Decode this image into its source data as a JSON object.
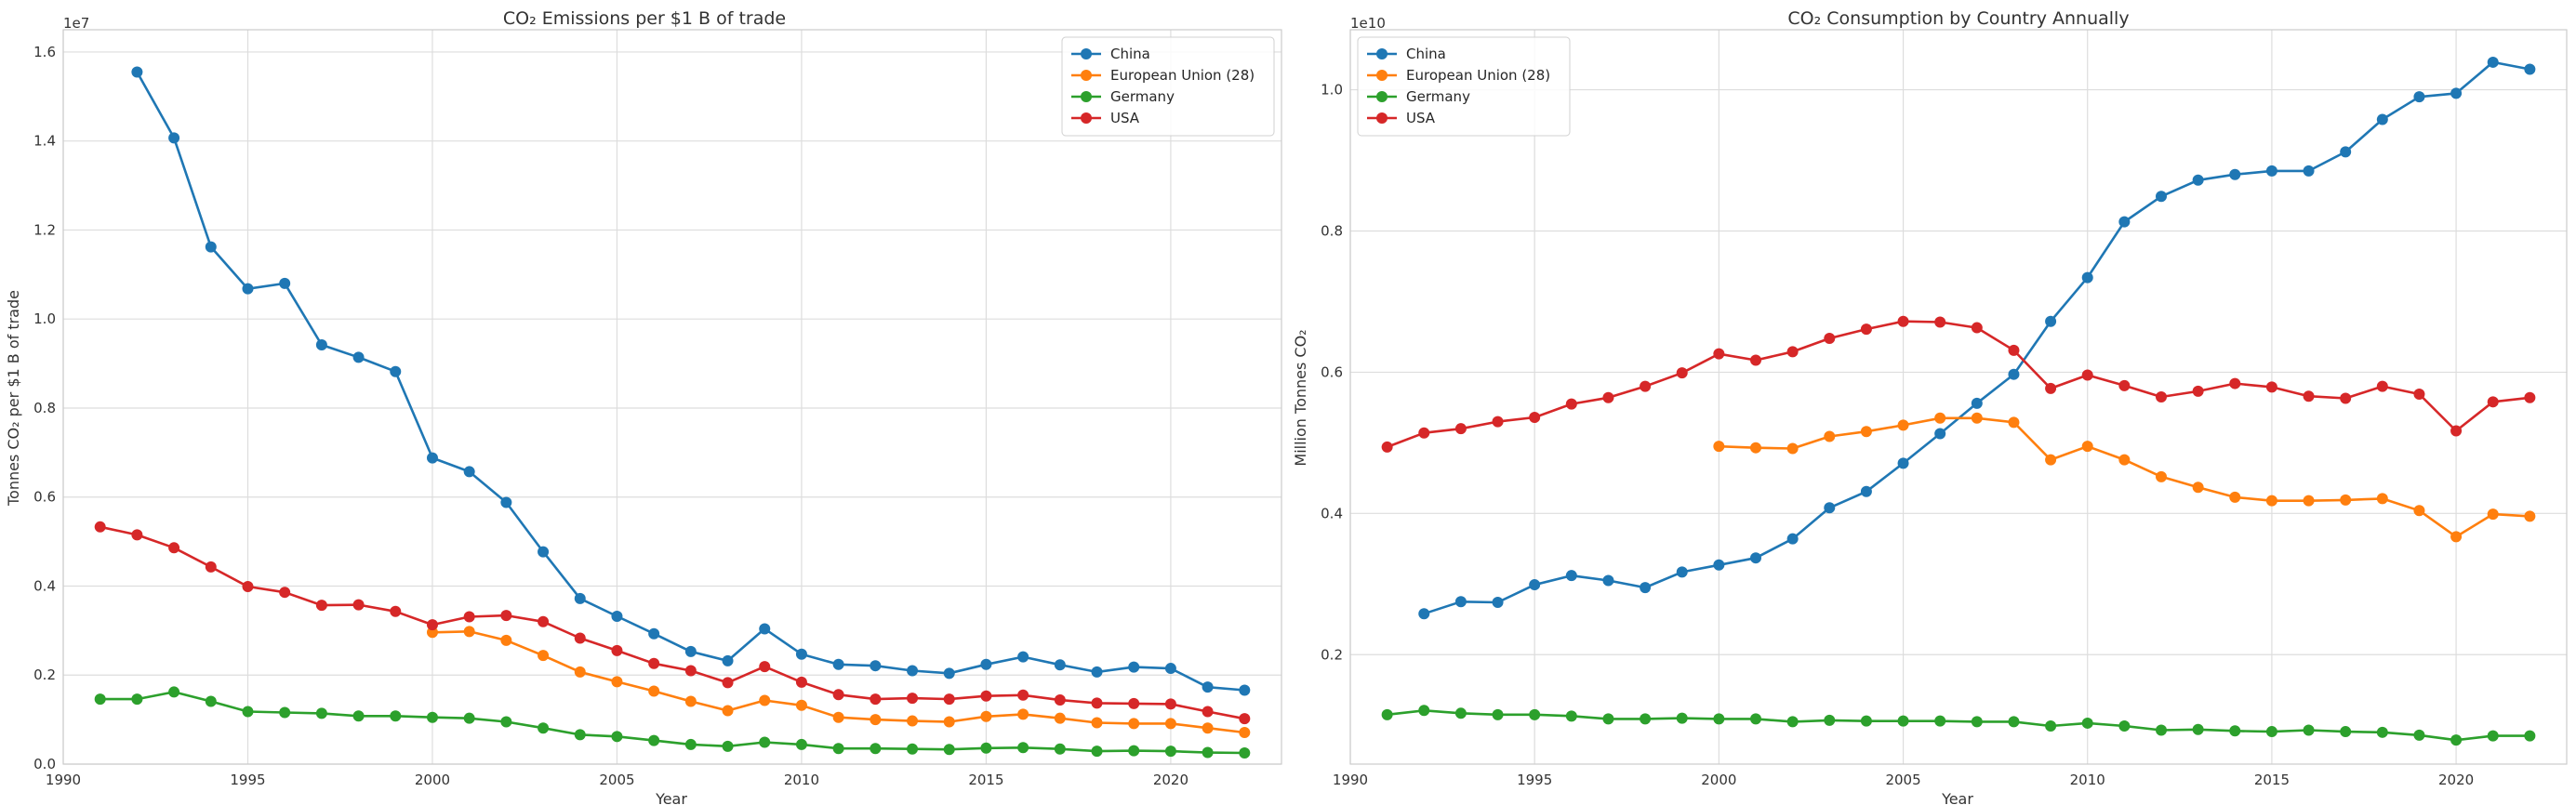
{
  "chart_data": [
    {
      "type": "line",
      "title": "CO₂ Emissions per $1 B of trade",
      "xlabel": "Year",
      "ylabel": "Tonnes CO₂ per $1 B of trade",
      "y_offset_label": "1e7",
      "xlim": [
        1990,
        2023
      ],
      "ylim": [
        0,
        16.5
      ],
      "x_ticks": [
        1990,
        1995,
        2000,
        2005,
        2010,
        2015,
        2020
      ],
      "y_ticks": [
        0,
        2,
        4,
        6,
        8,
        10,
        12,
        14,
        16
      ],
      "y_tick_labels": [
        "0.0",
        "0.2",
        "0.4",
        "0.6",
        "0.8",
        "1.0",
        "1.2",
        "1.4",
        "1.6"
      ],
      "grid": true,
      "legend_position": "top-right",
      "series": [
        {
          "name": "China",
          "color": "#1f77b4",
          "x": [
            1992,
            1993,
            1994,
            1995,
            1996,
            1997,
            1998,
            1999,
            2000,
            2001,
            2002,
            2003,
            2004,
            2005,
            2006,
            2007,
            2008,
            2009,
            2010,
            2011,
            2012,
            2013,
            2014,
            2015,
            2016,
            2017,
            2018,
            2019,
            2020,
            2021,
            2022
          ],
          "y": [
            15.55,
            14.07,
            11.62,
            10.68,
            10.8,
            9.42,
            9.14,
            8.82,
            6.88,
            6.57,
            5.88,
            4.77,
            3.72,
            3.32,
            2.93,
            2.53,
            2.32,
            3.04,
            2.47,
            2.24,
            2.21,
            2.1,
            2.04,
            2.24,
            2.41,
            2.23,
            2.07,
            2.18,
            2.15,
            1.73,
            1.66
          ]
        },
        {
          "name": "European Union (28)",
          "color": "#ff7f0e",
          "x": [
            2000,
            2001,
            2002,
            2003,
            2004,
            2005,
            2006,
            2007,
            2008,
            2009,
            2010,
            2011,
            2012,
            2013,
            2014,
            2015,
            2016,
            2017,
            2018,
            2019,
            2020,
            2021,
            2022
          ],
          "y": [
            2.96,
            2.98,
            2.78,
            2.44,
            2.07,
            1.85,
            1.64,
            1.41,
            1.2,
            1.43,
            1.32,
            1.05,
            1.0,
            0.97,
            0.95,
            1.07,
            1.12,
            1.03,
            0.93,
            0.91,
            0.91,
            0.81,
            0.71
          ]
        },
        {
          "name": "Germany",
          "color": "#2ca02c",
          "x": [
            1991,
            1992,
            1993,
            1994,
            1995,
            1996,
            1997,
            1998,
            1999,
            2000,
            2001,
            2002,
            2003,
            2004,
            2005,
            2006,
            2007,
            2008,
            2009,
            2010,
            2011,
            2012,
            2013,
            2014,
            2015,
            2016,
            2017,
            2018,
            2019,
            2020,
            2021,
            2022
          ],
          "y": [
            1.46,
            1.46,
            1.62,
            1.41,
            1.18,
            1.16,
            1.14,
            1.08,
            1.08,
            1.05,
            1.03,
            0.95,
            0.81,
            0.66,
            0.62,
            0.53,
            0.44,
            0.4,
            0.49,
            0.44,
            0.35,
            0.35,
            0.34,
            0.33,
            0.36,
            0.37,
            0.34,
            0.29,
            0.3,
            0.29,
            0.26,
            0.25
          ]
        },
        {
          "name": "USA",
          "color": "#d62728",
          "x": [
            1991,
            1992,
            1993,
            1994,
            1995,
            1996,
            1997,
            1998,
            1999,
            2000,
            2001,
            2002,
            2003,
            2004,
            2005,
            2006,
            2007,
            2008,
            2009,
            2010,
            2011,
            2012,
            2013,
            2014,
            2015,
            2016,
            2017,
            2018,
            2019,
            2020,
            2021,
            2022
          ],
          "y": [
            5.33,
            5.15,
            4.86,
            4.43,
            3.99,
            3.86,
            3.57,
            3.58,
            3.43,
            3.13,
            3.31,
            3.34,
            3.2,
            2.83,
            2.55,
            2.26,
            2.1,
            1.83,
            2.19,
            1.84,
            1.56,
            1.46,
            1.48,
            1.46,
            1.53,
            1.55,
            1.44,
            1.37,
            1.36,
            1.35,
            1.18,
            1.02
          ]
        }
      ]
    },
    {
      "type": "line",
      "title": "CO₂ Consumption by Country Annually",
      "xlabel": "Year",
      "ylabel": "Million Tonnes CO₂",
      "y_offset_label": "1e10",
      "xlim": [
        1990,
        2023
      ],
      "ylim": [
        0.45,
        10.85
      ],
      "x_ticks": [
        1990,
        1995,
        2000,
        2005,
        2010,
        2015,
        2020
      ],
      "y_ticks": [
        2,
        4,
        6,
        8,
        10
      ],
      "y_tick_labels": [
        "0.2",
        "0.4",
        "0.6",
        "0.8",
        "1.0"
      ],
      "grid": true,
      "legend_position": "top-left",
      "series": [
        {
          "name": "China",
          "color": "#1f77b4",
          "x": [
            1992,
            1993,
            1994,
            1995,
            1996,
            1997,
            1998,
            1999,
            2000,
            2001,
            2002,
            2003,
            2004,
            2005,
            2006,
            2007,
            2008,
            2009,
            2010,
            2011,
            2012,
            2013,
            2014,
            2015,
            2016,
            2017,
            2018,
            2019,
            2020,
            2021,
            2022
          ],
          "y": [
            2.58,
            2.75,
            2.74,
            2.99,
            3.12,
            3.05,
            2.95,
            3.17,
            3.27,
            3.37,
            3.64,
            4.08,
            4.31,
            4.71,
            5.13,
            5.56,
            5.97,
            6.72,
            7.34,
            8.13,
            8.49,
            8.72,
            8.8,
            8.85,
            8.85,
            9.12,
            9.58,
            9.9,
            9.95,
            10.39,
            10.29
          ]
        },
        {
          "name": "European Union (28)",
          "color": "#ff7f0e",
          "x": [
            2000,
            2001,
            2002,
            2003,
            2004,
            2005,
            2006,
            2007,
            2008,
            2009,
            2010,
            2011,
            2012,
            2013,
            2014,
            2015,
            2016,
            2017,
            2018,
            2019,
            2020,
            2021,
            2022
          ],
          "y": [
            4.95,
            4.93,
            4.92,
            5.09,
            5.16,
            5.25,
            5.35,
            5.35,
            5.29,
            4.76,
            4.95,
            4.76,
            4.52,
            4.37,
            4.23,
            4.18,
            4.18,
            4.19,
            4.21,
            4.04,
            3.67,
            3.99,
            3.96
          ]
        },
        {
          "name": "Germany",
          "color": "#2ca02c",
          "x": [
            1991,
            1992,
            1993,
            1994,
            1995,
            1996,
            1997,
            1998,
            1999,
            2000,
            2001,
            2002,
            2003,
            2004,
            2005,
            2006,
            2007,
            2008,
            2009,
            2010,
            2011,
            2012,
            2013,
            2014,
            2015,
            2016,
            2017,
            2018,
            2019,
            2020,
            2021,
            2022
          ],
          "y": [
            1.15,
            1.21,
            1.17,
            1.15,
            1.15,
            1.13,
            1.09,
            1.09,
            1.1,
            1.09,
            1.09,
            1.05,
            1.07,
            1.06,
            1.06,
            1.06,
            1.05,
            1.05,
            0.99,
            1.03,
            0.99,
            0.93,
            0.94,
            0.92,
            0.91,
            0.93,
            0.91,
            0.9,
            0.86,
            0.79,
            0.85,
            0.85
          ]
        },
        {
          "name": "USA",
          "color": "#d62728",
          "x": [
            1991,
            1992,
            1993,
            1994,
            1995,
            1996,
            1997,
            1998,
            1999,
            2000,
            2001,
            2002,
            2003,
            2004,
            2005,
            2006,
            2007,
            2008,
            2009,
            2010,
            2011,
            2012,
            2013,
            2014,
            2015,
            2016,
            2017,
            2018,
            2019,
            2020,
            2021,
            2022
          ],
          "y": [
            4.94,
            5.14,
            5.2,
            5.3,
            5.36,
            5.55,
            5.64,
            5.8,
            5.99,
            6.26,
            6.17,
            6.29,
            6.48,
            6.61,
            6.72,
            6.71,
            6.63,
            6.31,
            5.77,
            5.96,
            5.81,
            5.65,
            5.73,
            5.84,
            5.79,
            5.66,
            5.63,
            5.8,
            5.69,
            5.17,
            5.58,
            5.64
          ]
        }
      ]
    }
  ]
}
